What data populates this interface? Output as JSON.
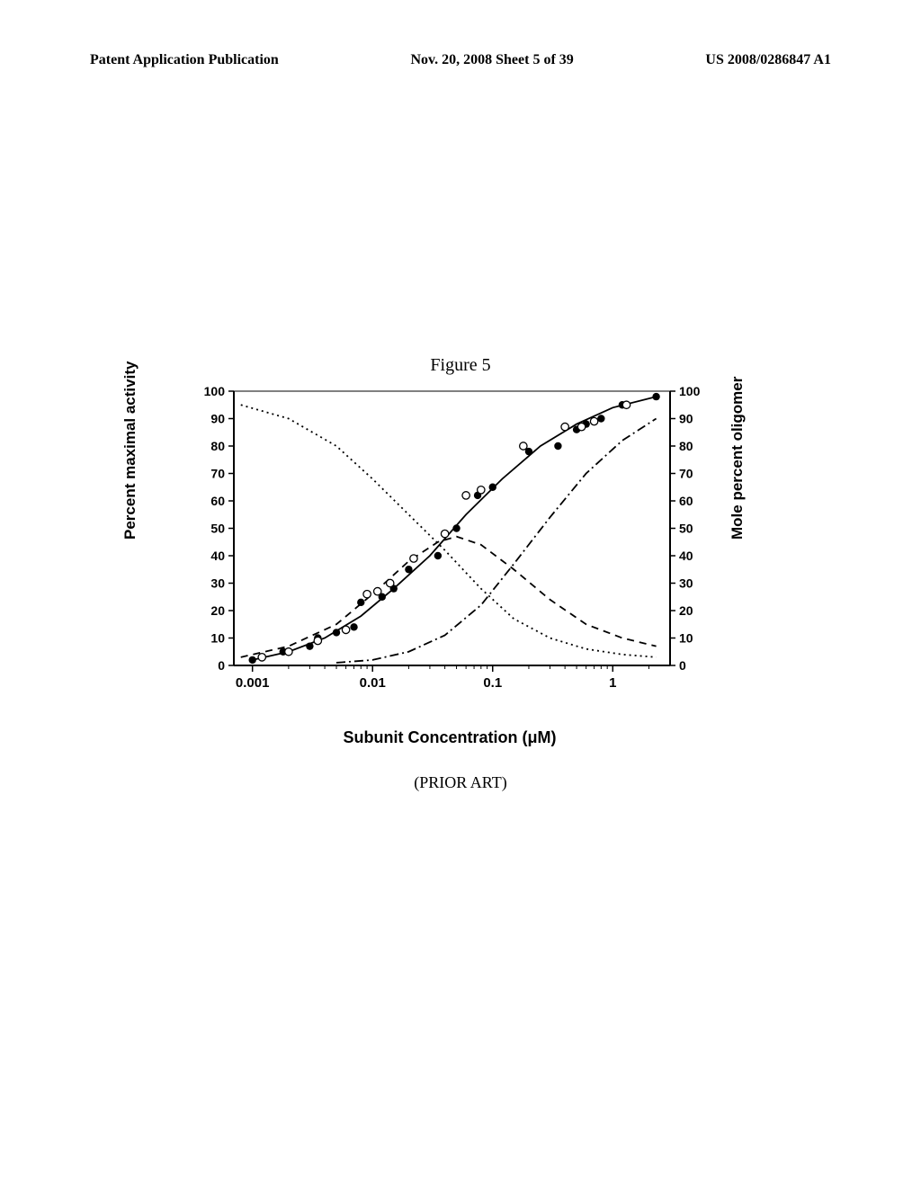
{
  "header": {
    "left": "Patent Application Publication",
    "center": "Nov. 20, 2008  Sheet 5 of 39",
    "right": "US 2008/0286847 A1"
  },
  "figure": {
    "title": "Figure 5",
    "prior_art": "(PRIOR ART)",
    "xlabel": "Subunit Concentration (μM)",
    "ylabel_left": "Percent maximal activity",
    "ylabel_right": "Mole percent oligomer",
    "x_scale": "log",
    "xlim": [
      0.0007,
      3.0
    ],
    "xticks": [
      0.001,
      0.01,
      0.1,
      1
    ],
    "xtick_labels": [
      "0.001",
      "0.01",
      "0.1",
      "1"
    ],
    "ylim": [
      0,
      100
    ],
    "yticks": [
      0,
      10,
      20,
      30,
      40,
      50,
      60,
      70,
      80,
      90,
      100
    ],
    "background_color": "#ffffff",
    "axis_color": "#000000",
    "tick_fontsize": 14,
    "label_fontsize": 17,
    "line_width": 1.8,
    "marker_size": 4.2,
    "series": {
      "activity_filled": {
        "marker": "filled-circle",
        "color": "#000000",
        "points": [
          [
            0.001,
            2
          ],
          [
            0.0018,
            5
          ],
          [
            0.003,
            7
          ],
          [
            0.0035,
            10
          ],
          [
            0.005,
            12
          ],
          [
            0.007,
            14
          ],
          [
            0.008,
            23
          ],
          [
            0.012,
            25
          ],
          [
            0.015,
            28
          ],
          [
            0.02,
            35
          ],
          [
            0.035,
            40
          ],
          [
            0.05,
            50
          ],
          [
            0.075,
            62
          ],
          [
            0.1,
            65
          ],
          [
            0.2,
            78
          ],
          [
            0.35,
            80
          ],
          [
            0.5,
            86
          ],
          [
            0.6,
            88
          ],
          [
            0.8,
            90
          ],
          [
            1.2,
            95
          ],
          [
            2.3,
            98
          ]
        ]
      },
      "activity_open": {
        "marker": "open-circle",
        "color": "#000000",
        "points": [
          [
            0.0012,
            3
          ],
          [
            0.002,
            5
          ],
          [
            0.0035,
            9
          ],
          [
            0.006,
            13
          ],
          [
            0.009,
            26
          ],
          [
            0.011,
            27
          ],
          [
            0.014,
            30
          ],
          [
            0.022,
            39
          ],
          [
            0.04,
            48
          ],
          [
            0.06,
            62
          ],
          [
            0.08,
            64
          ],
          [
            0.18,
            80
          ],
          [
            0.4,
            87
          ],
          [
            0.55,
            87
          ],
          [
            0.7,
            89
          ],
          [
            1.3,
            95
          ]
        ]
      },
      "fit_curve": {
        "style": "solid",
        "color": "#000000",
        "points": [
          [
            0.001,
            2
          ],
          [
            0.002,
            5
          ],
          [
            0.004,
            10
          ],
          [
            0.008,
            18
          ],
          [
            0.015,
            28
          ],
          [
            0.03,
            40
          ],
          [
            0.06,
            55
          ],
          [
            0.12,
            68
          ],
          [
            0.25,
            80
          ],
          [
            0.5,
            88
          ],
          [
            1.0,
            94
          ],
          [
            2.3,
            98
          ]
        ]
      },
      "dotted_decreasing": {
        "style": "dotted",
        "color": "#000000",
        "points": [
          [
            0.0008,
            95
          ],
          [
            0.002,
            90
          ],
          [
            0.005,
            80
          ],
          [
            0.01,
            68
          ],
          [
            0.02,
            55
          ],
          [
            0.04,
            42
          ],
          [
            0.08,
            28
          ],
          [
            0.15,
            17
          ],
          [
            0.3,
            10
          ],
          [
            0.6,
            6
          ],
          [
            1.2,
            4
          ],
          [
            2.3,
            3
          ]
        ]
      },
      "dashed_bell": {
        "style": "dashed",
        "color": "#000000",
        "points": [
          [
            0.0008,
            3
          ],
          [
            0.002,
            7
          ],
          [
            0.005,
            15
          ],
          [
            0.01,
            26
          ],
          [
            0.02,
            38
          ],
          [
            0.035,
            45
          ],
          [
            0.05,
            47
          ],
          [
            0.08,
            44
          ],
          [
            0.15,
            35
          ],
          [
            0.3,
            24
          ],
          [
            0.6,
            15
          ],
          [
            1.2,
            10
          ],
          [
            2.3,
            7
          ]
        ]
      },
      "dash_dot_increasing": {
        "style": "dash-dot",
        "color": "#000000",
        "points": [
          [
            0.005,
            1
          ],
          [
            0.01,
            2
          ],
          [
            0.02,
            5
          ],
          [
            0.04,
            11
          ],
          [
            0.08,
            22
          ],
          [
            0.15,
            37
          ],
          [
            0.3,
            54
          ],
          [
            0.6,
            70
          ],
          [
            1.2,
            82
          ],
          [
            2.3,
            90
          ]
        ]
      }
    }
  }
}
